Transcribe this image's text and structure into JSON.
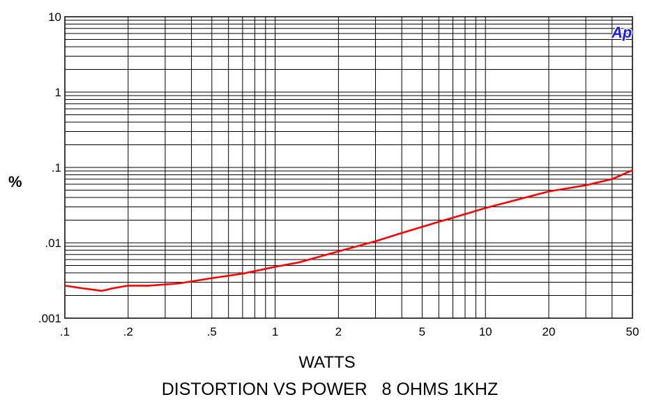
{
  "chart_data": {
    "type": "line",
    "title": "DISTORTION VS POWER   8 OHMS 1KHZ",
    "xlabel": "WATTS",
    "ylabel": "%",
    "x_scale": "log",
    "y_scale": "log",
    "xlim": [
      0.1,
      50
    ],
    "ylim": [
      0.001,
      10
    ],
    "x_tick_labels": [
      ".1",
      ".2",
      ".5",
      "1",
      "2",
      "5",
      "10",
      "20",
      "50"
    ],
    "x_tick_values": [
      0.1,
      0.2,
      0.5,
      1,
      2,
      5,
      10,
      20,
      50
    ],
    "y_tick_labels": [
      ".001",
      ".01",
      ".1",
      "1",
      "10"
    ],
    "y_tick_values": [
      0.001,
      0.01,
      0.1,
      1,
      10
    ],
    "grid": true,
    "logo": "Ap",
    "series": [
      {
        "color": "#ff0000",
        "x": [
          0.1,
          0.12,
          0.15,
          0.17,
          0.2,
          0.25,
          0.3,
          0.35,
          0.5,
          0.7,
          1,
          1.3,
          2,
          3,
          4,
          6,
          8,
          10,
          15,
          20,
          30,
          40,
          50
        ],
        "y": [
          0.0027,
          0.0025,
          0.0023,
          0.0025,
          0.0027,
          0.0027,
          0.0028,
          0.0029,
          0.0034,
          0.0039,
          0.0048,
          0.0055,
          0.0077,
          0.0105,
          0.0135,
          0.019,
          0.024,
          0.029,
          0.039,
          0.048,
          0.058,
          0.07,
          0.092
        ]
      }
    ]
  }
}
